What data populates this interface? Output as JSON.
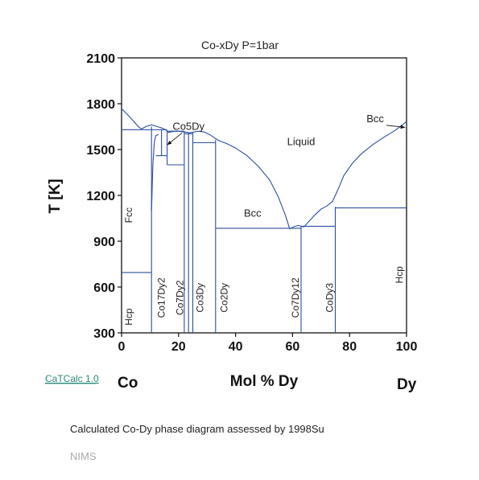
{
  "chart_data": {
    "type": "phase-diagram",
    "title": "Co-xDy    P=1bar",
    "xlabel": "Mol % Dy",
    "ylabel": "T [K]",
    "xlim": [
      0,
      100
    ],
    "ylim": [
      300,
      2100
    ],
    "x_ticks": [
      "0",
      "20",
      "40",
      "60",
      "80",
      "100"
    ],
    "y_ticks": [
      "300",
      "600",
      "900",
      "1200",
      "1500",
      "1800",
      "2100"
    ],
    "x_tick_values": [
      0,
      20,
      40,
      60,
      80,
      100
    ],
    "y_tick_values": [
      300,
      600,
      900,
      1200,
      1500,
      1800,
      2100
    ],
    "left_element": "Co",
    "right_element": "Dy",
    "colors": {
      "boundary": "#2b4f9e",
      "axis": "#111111"
    },
    "phase_labels": [
      {
        "text": "Liquid",
        "x": 63,
        "y": 1530
      },
      {
        "text": "Bcc",
        "x": 46,
        "y": 1060
      },
      {
        "text": "Bcc",
        "x": 89,
        "y": 1680,
        "arrow_to": {
          "x": 99.5,
          "y": 1645
        }
      },
      {
        "text": "Co5Dy",
        "x": 23.5,
        "y": 1630,
        "arrow_to": {
          "x": 16,
          "y": 1530
        }
      },
      {
        "text": "Fcc",
        "x": 2.5,
        "y": 1070,
        "vertical": true
      },
      {
        "text": "Hcp",
        "x": 2.5,
        "y": 405,
        "vertical": true
      },
      {
        "text": "Co17Dy2",
        "x": 14,
        "y": 530,
        "vertical": true
      },
      {
        "text": "Co7Dy2",
        "x": 20.5,
        "y": 530,
        "vertical": true
      },
      {
        "text": "Co3Dy",
        "x": 27.5,
        "y": 530,
        "vertical": true
      },
      {
        "text": "Co2Dy",
        "x": 36,
        "y": 530,
        "vertical": true
      },
      {
        "text": "Co7Dy12",
        "x": 61,
        "y": 530,
        "vertical": true
      },
      {
        "text": "CoDy3",
        "x": 73,
        "y": 530,
        "vertical": true
      },
      {
        "text": "Hcp",
        "x": 97.5,
        "y": 680,
        "vertical": true
      }
    ],
    "boundaries": [
      {
        "name": "liquidus-co-side",
        "points": [
          [
            0,
            1768
          ],
          [
            2,
            1730
          ],
          [
            4,
            1690
          ],
          [
            6,
            1648
          ],
          [
            7,
            1635
          ],
          [
            8.5,
            1650
          ],
          [
            10.5,
            1662
          ],
          [
            12.5,
            1650
          ],
          [
            14,
            1642
          ],
          [
            15.5,
            1630
          ],
          [
            16.5,
            1612
          ],
          [
            18,
            1618
          ],
          [
            20,
            1620
          ],
          [
            22,
            1615
          ],
          [
            24,
            1610
          ],
          [
            27,
            1620
          ],
          [
            29,
            1615
          ],
          [
            31,
            1597
          ],
          [
            33,
            1572
          ],
          [
            34,
            1560
          ],
          [
            37,
            1538
          ],
          [
            40,
            1510
          ],
          [
            44,
            1460
          ],
          [
            48,
            1390
          ],
          [
            52,
            1300
          ],
          [
            55,
            1190
          ],
          [
            57.5,
            1070
          ],
          [
            59,
            980
          ]
        ]
      },
      {
        "name": "eutectic-dip-co7dy12",
        "points": [
          [
            59,
            980
          ],
          [
            60.5,
            995
          ],
          [
            62,
            1003
          ],
          [
            64,
            993
          ]
        ]
      },
      {
        "name": "liquidus-dy-side",
        "points": [
          [
            64,
            993
          ],
          [
            66,
            1035
          ],
          [
            68,
            1075
          ],
          [
            70,
            1110
          ],
          [
            71,
            1120
          ],
          [
            72,
            1130
          ],
          [
            74,
            1160
          ],
          [
            76,
            1240
          ],
          [
            78,
            1330
          ],
          [
            81,
            1410
          ],
          [
            84,
            1470
          ],
          [
            88,
            1530
          ],
          [
            92,
            1580
          ],
          [
            96,
            1625
          ],
          [
            99,
            1668
          ],
          [
            100,
            1685
          ]
        ]
      },
      {
        "name": "fcc-hcp-co-solvus",
        "points": [
          [
            0,
            1630
          ],
          [
            10.5,
            1630
          ]
        ]
      },
      {
        "name": "hcp-fcc-transition",
        "points": [
          [
            0,
            695
          ],
          [
            10.5,
            695
          ]
        ]
      },
      {
        "name": "co17dy2-solvus-left",
        "points": [
          [
            10.5,
            1650
          ],
          [
            10.5,
            300
          ]
        ]
      },
      {
        "name": "co17dy2-solvus-right",
        "points": [
          [
            10.5,
            1100
          ],
          [
            11,
            1400
          ],
          [
            11.5,
            1550
          ],
          [
            12,
            1590
          ],
          [
            13,
            1600
          ]
        ]
      },
      {
        "name": "co17dy2-upper-bound",
        "points": [
          [
            10.5,
            1630
          ],
          [
            16,
            1630
          ]
        ]
      },
      {
        "name": "co5dy-left",
        "points": [
          [
            14,
            1630
          ],
          [
            14,
            1460
          ]
        ]
      },
      {
        "name": "co5dy-right",
        "points": [
          [
            16,
            1620
          ],
          [
            16,
            1400
          ]
        ]
      },
      {
        "name": "co5dy-eutectoid",
        "points": [
          [
            12,
            1460
          ],
          [
            16,
            1460
          ]
        ]
      },
      {
        "name": "co5dy-decomposition",
        "points": [
          [
            16,
            1400
          ],
          [
            22,
            1400
          ]
        ]
      },
      {
        "name": "co5dy-top",
        "points": [
          [
            16,
            1620
          ],
          [
            22,
            1620
          ]
        ]
      },
      {
        "name": "co7dy2-line",
        "points": [
          [
            22,
            1620
          ],
          [
            22,
            300
          ]
        ]
      },
      {
        "name": "co7dy2-left-edge",
        "points": [
          [
            23.5,
            1612
          ],
          [
            23.5,
            300
          ]
        ]
      },
      {
        "name": "co7dy2-peritectic",
        "points": [
          [
            22,
            1603
          ],
          [
            25,
            1603
          ]
        ]
      },
      {
        "name": "co3dy-line",
        "points": [
          [
            25,
            1610
          ],
          [
            25,
            300
          ]
        ]
      },
      {
        "name": "co3dy-peritectic",
        "points": [
          [
            25,
            1545
          ],
          [
            33,
            1545
          ]
        ]
      },
      {
        "name": "co2dy-line",
        "points": [
          [
            33,
            1565
          ],
          [
            33,
            300
          ]
        ]
      },
      {
        "name": "eutectic-co2dy-co7dy12",
        "points": [
          [
            33,
            985
          ],
          [
            63,
            985
          ]
        ]
      },
      {
        "name": "co7dy12-line",
        "points": [
          [
            63,
            1000
          ],
          [
            63,
            300
          ]
        ]
      },
      {
        "name": "co7dy12-peritectic",
        "points": [
          [
            63,
            998
          ],
          [
            75,
            998
          ]
        ]
      },
      {
        "name": "cody3-line",
        "points": [
          [
            75,
            1125
          ],
          [
            75,
            300
          ]
        ]
      },
      {
        "name": "eutectoid-dy-side",
        "points": [
          [
            75,
            1118
          ],
          [
            100,
            1118
          ]
        ]
      }
    ]
  },
  "footer": {
    "brand": "CaTCalc 1.0",
    "caption": "Calculated Co-Dy phase diagram assessed by 1998Su",
    "credit": "NIMS"
  }
}
